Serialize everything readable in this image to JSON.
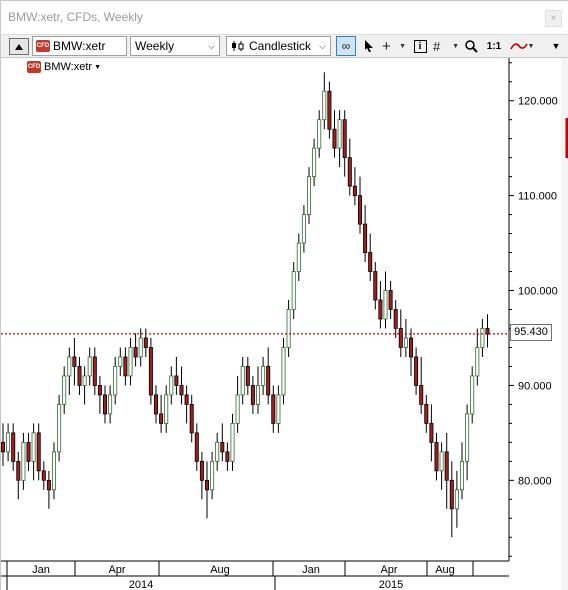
{
  "window": {
    "title": "BMW:xetr, CFDs, Weekly",
    "close_label": "×"
  },
  "toolbar": {
    "symbol": "BMW:xetr",
    "symbol_badge": "CFD",
    "period": "Weekly",
    "chart_type": "Candlestick",
    "zoom_1_1": "1:1"
  },
  "legend": {
    "label": "BMW:xetr",
    "badge": "CFD"
  },
  "colors": {
    "up": "#2f6b2f",
    "down": "#a01e1e",
    "last_line": "#c00000",
    "grid": "#e6e6e6"
  },
  "chart_data": {
    "type": "candlestick",
    "y_ticks": [
      "80.000",
      "90.000",
      "100.000",
      "110.000",
      "120.000"
    ],
    "y_tick_values": [
      80,
      90,
      100,
      110,
      120
    ],
    "ylim": [
      71.5,
      124.5
    ],
    "last_price": 95.43,
    "last_price_label": "95.430",
    "month_labels": [
      "Jan",
      "Apr",
      "Aug",
      "Jan",
      "Apr",
      "Aug"
    ],
    "year_labels": [
      "2014",
      "2015"
    ],
    "candles": [
      [
        84,
        83,
        86,
        81.5
      ],
      [
        83,
        85,
        86,
        82
      ],
      [
        85,
        82,
        86,
        81
      ],
      [
        82,
        80,
        83,
        78
      ],
      [
        80,
        84,
        85,
        79
      ],
      [
        84,
        82,
        85,
        81
      ],
      [
        82,
        85,
        86,
        80
      ],
      [
        85,
        81,
        86,
        80
      ],
      [
        81,
        80,
        82,
        79
      ],
      [
        80,
        79,
        81,
        77
      ],
      [
        79,
        83,
        84,
        78
      ],
      [
        83,
        88,
        89,
        82
      ],
      [
        88,
        91,
        92,
        87
      ],
      [
        91,
        93,
        94,
        89
      ],
      [
        93,
        92,
        95,
        90
      ],
      [
        92,
        90,
        93,
        89
      ],
      [
        90,
        91,
        92,
        88
      ],
      [
        91,
        93,
        94,
        90
      ],
      [
        93,
        90,
        94,
        89
      ],
      [
        90,
        89,
        91,
        87
      ],
      [
        89,
        87,
        90,
        86
      ],
      [
        87,
        89,
        90,
        86
      ],
      [
        89,
        92,
        93,
        88
      ],
      [
        92,
        93,
        94,
        91
      ],
      [
        93,
        91,
        94,
        90
      ],
      [
        91,
        94,
        95,
        90
      ],
      [
        94,
        93,
        95.5,
        92
      ],
      [
        93,
        95,
        96,
        92
      ],
      [
        95,
        94,
        96,
        93
      ],
      [
        94,
        89,
        95,
        88
      ],
      [
        89,
        87,
        90,
        86
      ],
      [
        87,
        86,
        89,
        85
      ],
      [
        86,
        89,
        90,
        85
      ],
      [
        89,
        91,
        92,
        88
      ],
      [
        91,
        90,
        93,
        89
      ],
      [
        90,
        89,
        92,
        88
      ],
      [
        89,
        88,
        90,
        86
      ],
      [
        88,
        85,
        89,
        84
      ],
      [
        85,
        82,
        86,
        81
      ],
      [
        82,
        80,
        83,
        78
      ],
      [
        80,
        79,
        82,
        76
      ],
      [
        79,
        82,
        83,
        78
      ],
      [
        82,
        84,
        85,
        81
      ],
      [
        84,
        83,
        86,
        82
      ],
      [
        83,
        82,
        84,
        81
      ],
      [
        82,
        86,
        87,
        81
      ],
      [
        86,
        89,
        91,
        85
      ],
      [
        89,
        92,
        93,
        88
      ],
      [
        92,
        90,
        93,
        89
      ],
      [
        90,
        88,
        91,
        87
      ],
      [
        88,
        90,
        92,
        87
      ],
      [
        90,
        92,
        93,
        89
      ],
      [
        92,
        89,
        94,
        88
      ],
      [
        89,
        86,
        90,
        85
      ],
      [
        86,
        89,
        90,
        85
      ],
      [
        89,
        94,
        95,
        88
      ],
      [
        94,
        98,
        99,
        93
      ],
      [
        98,
        102,
        103,
        97
      ],
      [
        102,
        105,
        106,
        101
      ],
      [
        105,
        108,
        109,
        104
      ],
      [
        108,
        112,
        113,
        107
      ],
      [
        112,
        115,
        116,
        111
      ],
      [
        115,
        118,
        119,
        114
      ],
      [
        118,
        121,
        123,
        117
      ],
      [
        121,
        117,
        122,
        116
      ],
      [
        117,
        115,
        119,
        114
      ],
      [
        115,
        118,
        119,
        113
      ],
      [
        118,
        114,
        119,
        112
      ],
      [
        114,
        111,
        116,
        110
      ],
      [
        111,
        110,
        113,
        109
      ],
      [
        110,
        107,
        112,
        106
      ],
      [
        107,
        104,
        109,
        103
      ],
      [
        104,
        102,
        106,
        101
      ],
      [
        102,
        99,
        103,
        98
      ],
      [
        99,
        97,
        101,
        96
      ],
      [
        97,
        100,
        102,
        96
      ],
      [
        100,
        98,
        101,
        97
      ],
      [
        98,
        96,
        99,
        95
      ],
      [
        96,
        94,
        98,
        93
      ],
      [
        94,
        95,
        97,
        93
      ],
      [
        95,
        93,
        96,
        91
      ],
      [
        93,
        90,
        94,
        89
      ],
      [
        90,
        88,
        93,
        87
      ],
      [
        88,
        86,
        89,
        85
      ],
      [
        86,
        84,
        88,
        82
      ],
      [
        84,
        81,
        85,
        80
      ],
      [
        81,
        83,
        84,
        79
      ],
      [
        83,
        80,
        85,
        77
      ],
      [
        80,
        77,
        82,
        74
      ],
      [
        77,
        79,
        81,
        75
      ],
      [
        79,
        82,
        84,
        78
      ],
      [
        82,
        87,
        88,
        80
      ],
      [
        87,
        91,
        92,
        86
      ],
      [
        91,
        94,
        96,
        90
      ],
      [
        94,
        96,
        97,
        93
      ],
      [
        96,
        95.4,
        97.5,
        94
      ]
    ]
  }
}
